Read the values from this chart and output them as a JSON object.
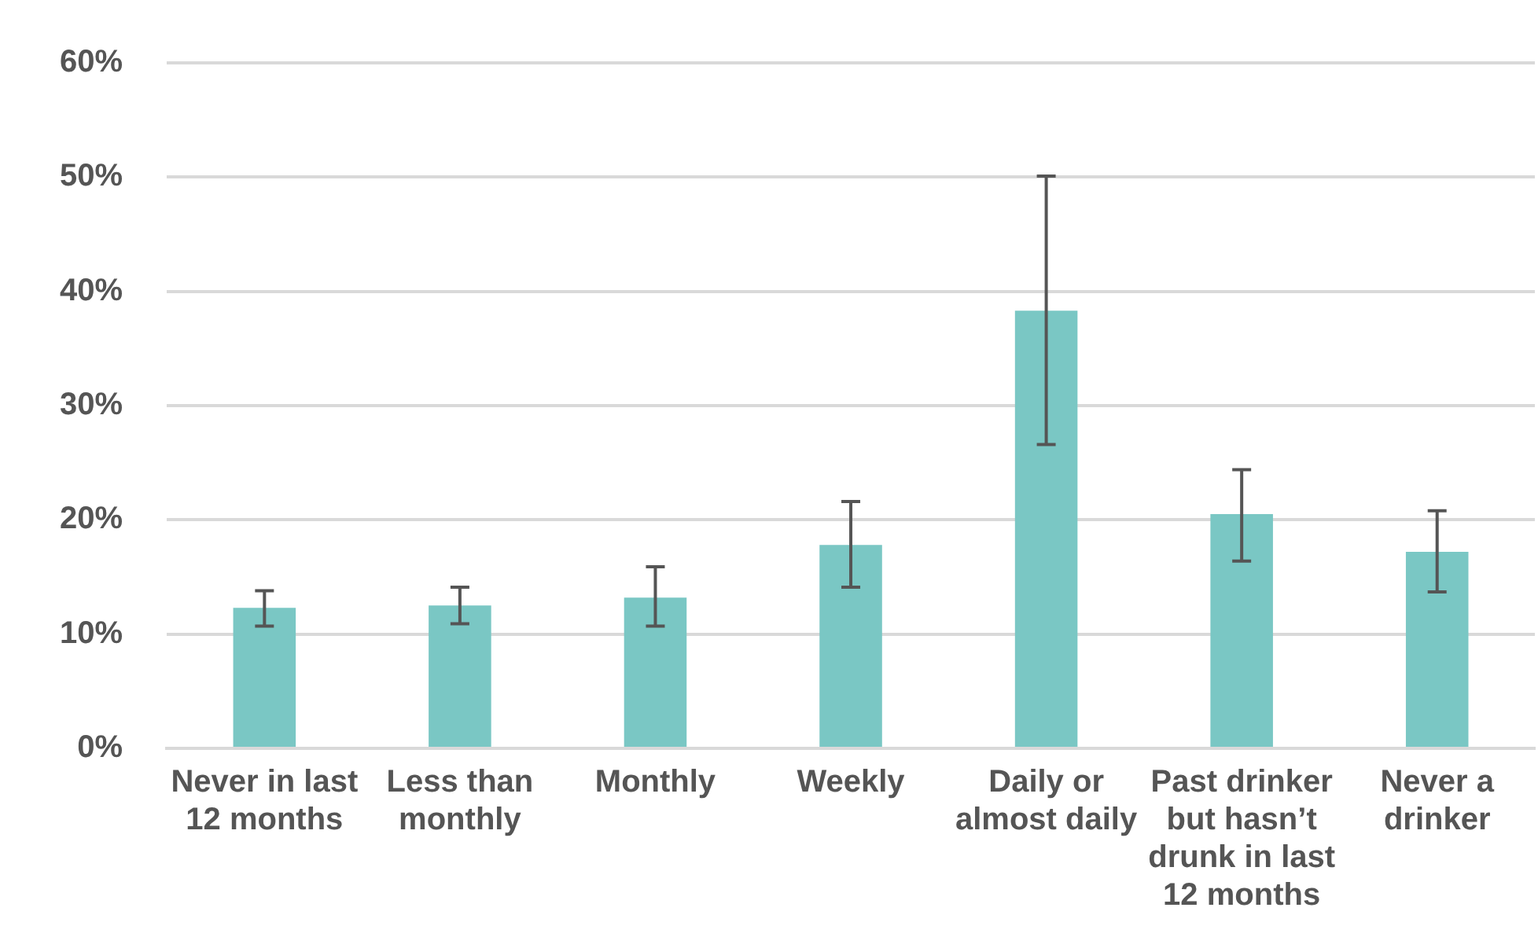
{
  "chart_data": {
    "type": "bar",
    "categories": [
      "Never in last 12 months",
      "Less than monthly",
      "Monthly",
      "Weekly",
      "Daily or almost daily",
      "Past drinker but hasn’t drunk in last 12 months",
      "Never a drinker"
    ],
    "values": [
      12.3,
      12.5,
      13.2,
      17.8,
      38.3,
      20.5,
      17.2
    ],
    "errors": [
      [
        10.7,
        13.8
      ],
      [
        10.9,
        14.1
      ],
      [
        10.7,
        15.9
      ],
      [
        14.1,
        21.6
      ],
      [
        26.6,
        50.1
      ],
      [
        16.4,
        24.4
      ],
      [
        13.7,
        20.8
      ]
    ],
    "color": "#7ac7c4",
    "ylim": [
      0,
      60
    ],
    "yticks": [
      {
        "value": 0,
        "label": "0%"
      },
      {
        "value": 10,
        "label": "10%"
      },
      {
        "value": 20,
        "label": "20%"
      },
      {
        "value": 30,
        "label": "30%"
      },
      {
        "value": 40,
        "label": "40%"
      },
      {
        "value": 50,
        "label": "50%"
      },
      {
        "value": 60,
        "label": "60%"
      }
    ],
    "grid": "y",
    "legend": false
  }
}
